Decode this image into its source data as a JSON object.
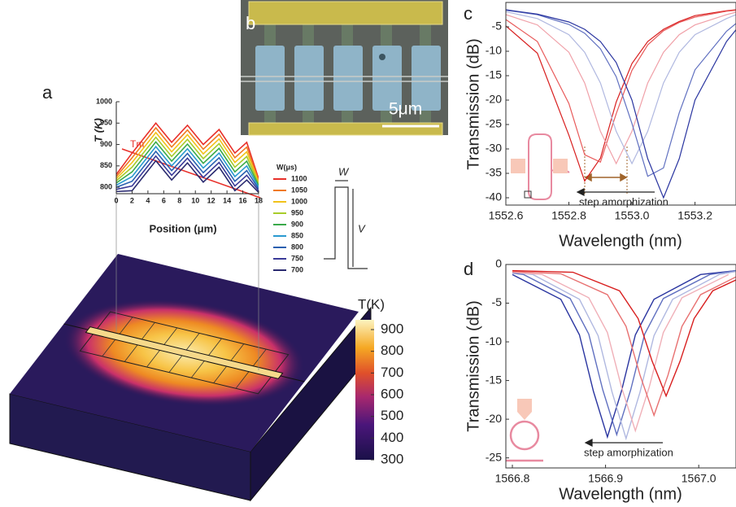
{
  "panel_labels": [
    "a",
    "b",
    "c",
    "d"
  ],
  "panel_b": {
    "scale_label": "5μm"
  },
  "panel_a": {
    "tm_label": "Tm",
    "pulse": {
      "w_label": "W",
      "v_label": "V"
    },
    "colorbar": {
      "title": "T(K)",
      "lim": [
        300,
        945
      ],
      "ticks": [
        300,
        400,
        500,
        600,
        700,
        800,
        900
      ]
    }
  },
  "chart_data": [
    {
      "type": "line",
      "x_label": "Position (μm)",
      "y_label": "T (K)",
      "legend_title": "W(μs)",
      "x": [
        0,
        2,
        5,
        7,
        9,
        11,
        13,
        15,
        16.5,
        18
      ],
      "xlim": [
        0,
        18
      ],
      "xticks": [
        0,
        2,
        4,
        6,
        8,
        10,
        12,
        14,
        16,
        18
      ],
      "ylim": [
        785,
        1000
      ],
      "yticks": [
        800,
        850,
        900,
        950,
        1000
      ],
      "series": [
        {
          "name": "1100",
          "color": "#e8302a",
          "values": [
            830,
            880,
            950,
            905,
            945,
            900,
            935,
            880,
            905,
            820
          ]
        },
        {
          "name": "1050",
          "color": "#f07a20",
          "values": [
            825,
            869,
            939,
            894,
            934,
            889,
            924,
            869,
            894,
            816
          ]
        },
        {
          "name": "1000",
          "color": "#f2c21a",
          "values": [
            820,
            858,
            928,
            883,
            923,
            878,
            913,
            858,
            883,
            812
          ]
        },
        {
          "name": "950",
          "color": "#a8cc2a",
          "values": [
            815,
            847,
            917,
            872,
            912,
            867,
            902,
            847,
            872,
            808
          ]
        },
        {
          "name": "900",
          "color": "#3aaa4a",
          "values": [
            810,
            836,
            906,
            861,
            901,
            856,
            891,
            836,
            861,
            804
          ]
        },
        {
          "name": "850",
          "color": "#2a9ad0",
          "values": [
            805,
            825,
            895,
            850,
            890,
            845,
            880,
            825,
            850,
            800
          ]
        },
        {
          "name": "800",
          "color": "#2a60b0",
          "values": [
            800,
            814,
            884,
            839,
            879,
            834,
            869,
            814,
            839,
            796
          ]
        },
        {
          "name": "750",
          "color": "#3a3a98",
          "values": [
            795,
            803,
            873,
            828,
            868,
            823,
            858,
            803,
            828,
            792
          ]
        },
        {
          "name": "700",
          "color": "#2a2a70",
          "values": [
            790,
            792,
            862,
            817,
            857,
            812,
            847,
            792,
            817,
            788
          ]
        }
      ]
    },
    {
      "type": "line",
      "x_label": "Wavelength (nm)",
      "y_label": "Transmission (dB)",
      "annotation": "step amorphization",
      "x": [
        1552.6,
        1552.7,
        1552.8,
        1552.85,
        1552.9,
        1552.95,
        1553.0,
        1553.05,
        1553.1,
        1553.15,
        1553.2,
        1553.3,
        1553.33
      ],
      "xlim": [
        1552.6,
        1553.33
      ],
      "xticks": [
        1552.6,
        1552.8,
        {
          "value": 1553.0,
          "label": "1553.0"
        },
        1553.2
      ],
      "ylim": [
        -41.5,
        0
      ],
      "yticks": [
        -40,
        -35,
        -30,
        -25,
        -20,
        -15,
        -10,
        -5
      ],
      "series": [
        {
          "color": "#d81e1e",
          "values": [
            -4.8,
            -10.4,
            -27.2,
            -36.6,
            -31.9,
            -20.4,
            -12.5,
            -8.0,
            -5.5,
            -3.9,
            -2.7,
            -1.7,
            -1.5
          ]
        },
        {
          "color": "#e85a5a",
          "values": [
            -3.5,
            -8.0,
            -20.7,
            -31.2,
            -32.7,
            -22.8,
            -13.9,
            -8.7,
            -5.8,
            -4.1,
            -3.0,
            -1.8,
            -1.6
          ]
        },
        {
          "color": "#f0a0a8",
          "values": [
            -2.5,
            -4.6,
            -10.2,
            -16.5,
            -26.4,
            -33,
            -26.4,
            -16.5,
            -10.2,
            -6.6,
            -4.6,
            -2.5,
            -2.0
          ]
        },
        {
          "color": "#b0b8e0",
          "values": [
            -1.9,
            -3.3,
            -6.6,
            -10.2,
            -16.5,
            -26.4,
            -33,
            -26.4,
            -16.5,
            -10.2,
            -6.6,
            -3.3,
            -2.5
          ]
        },
        {
          "color": "#6070c0",
          "values": [
            -1.6,
            -2.5,
            -4.5,
            -6.3,
            -9.5,
            -15.2,
            -24.8,
            -35.6,
            -33.9,
            -22.6,
            -13.8,
            -5.9,
            -4.3
          ]
        },
        {
          "color": "#2a35a0",
          "values": [
            -1.5,
            -2.4,
            -4.0,
            -5.5,
            -8.0,
            -12.3,
            -20,
            -32,
            -40,
            -32,
            -20,
            -8.0,
            -5.6
          ]
        }
      ]
    },
    {
      "type": "line",
      "x_label": "Wavelength (nm)",
      "y_label": "Transmission (dB)",
      "annotation": "step amorphization",
      "xlim": [
        1566.793,
        1567.04
      ],
      "xticks": [
        1566.8,
        1566.9,
        {
          "value": 1567.0,
          "label": "1567.0"
        }
      ],
      "ylim": [
        -26.3,
        0
      ],
      "yticks": [
        -25,
        -20,
        -15,
        -10,
        -5,
        0
      ],
      "series": [
        {
          "color": "#2a35a0",
          "x": [
            1566.8,
            1566.852,
            1566.872,
            1566.887,
            1566.902,
            1566.917,
            1566.932,
            1566.952,
            1567.002,
            1567.04
          ],
          "values": [
            -1.3,
            -4.5,
            -9.1,
            -16.4,
            -22.3,
            -16.4,
            -9.1,
            -4.5,
            -1.3,
            -0.8
          ]
        },
        {
          "color": "#6070c0",
          "x": [
            1566.8,
            1566.812,
            1566.862,
            1566.882,
            1566.897,
            1566.912,
            1566.927,
            1566.942,
            1566.962,
            1567.012,
            1567.04
          ],
          "values": [
            -1.1,
            -1.3,
            -4.4,
            -9.0,
            -16.2,
            -22.0,
            -16.2,
            -9.0,
            -4.4,
            -1.3,
            -0.8
          ]
        },
        {
          "color": "#b0b8e0",
          "x": [
            1566.8,
            1566.822,
            1566.872,
            1566.892,
            1566.907,
            1566.922,
            1566.937,
            1566.952,
            1566.972,
            1567.022,
            1567.04
          ],
          "values": [
            -1.0,
            -1.3,
            -4.5,
            -9.2,
            -16.5,
            -22.5,
            -16.5,
            -9.2,
            -4.5,
            -1.3,
            -0.9
          ]
        },
        {
          "color": "#f0b0b8",
          "x": [
            1566.8,
            1566.832,
            1566.882,
            1566.902,
            1566.917,
            1566.932,
            1566.947,
            1566.962,
            1566.982,
            1567.032
          ],
          "values": [
            -1.0,
            -1.3,
            -4.3,
            -8.8,
            -15.8,
            -21.5,
            -15.8,
            -8.8,
            -4.3,
            -1.3
          ]
        },
        {
          "color": "#e87070",
          "x": [
            1566.8,
            1566.852,
            1566.902,
            1566.922,
            1566.937,
            1566.952,
            1566.967,
            1566.982,
            1567.002,
            1567.04
          ],
          "values": [
            -0.9,
            -1.2,
            -3.9,
            -8.0,
            -14.3,
            -19.5,
            -14.3,
            -8.0,
            -3.9,
            -1.6
          ]
        },
        {
          "color": "#d81e1e",
          "x": [
            1566.8,
            1566.865,
            1566.915,
            1566.935,
            1566.95,
            1566.965,
            1566.98,
            1566.995,
            1567.015,
            1567.04
          ],
          "values": [
            -0.8,
            -1.0,
            -3.4,
            -7.0,
            -12.5,
            -17.0,
            -12.5,
            -7.0,
            -3.4,
            -2.0
          ]
        }
      ]
    }
  ]
}
